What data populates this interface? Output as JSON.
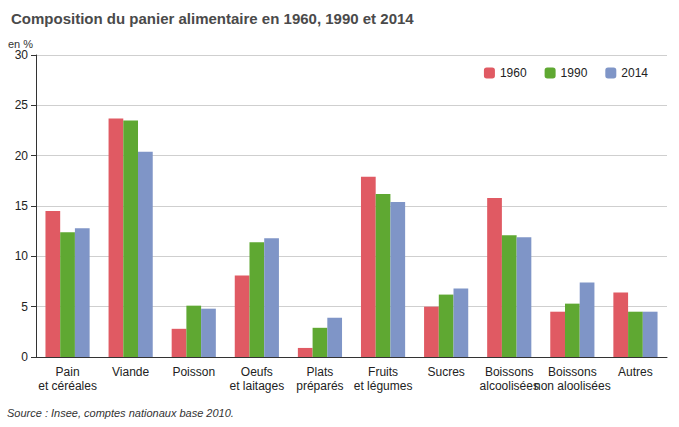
{
  "chart_data": {
    "type": "bar",
    "title": "Composition du panier alimentaire en 1960, 1990 et 2014",
    "ylabel": "en %",
    "note": "Source : Insee, comptes nationaux base 2010.",
    "categories": [
      "Pain\net céréales",
      "Viande",
      "Poisson",
      "Oeufs\net laitages",
      "Plats\npréparés",
      "Fruits\net légumes",
      "Sucres",
      "Boissons\nalcoolisées",
      "Boissons\nnon aloolisées",
      "Autres"
    ],
    "series": [
      {
        "name": "1960",
        "color": "#e05a63",
        "values": [
          14.5,
          23.7,
          2.8,
          8.1,
          0.9,
          17.9,
          5.0,
          15.8,
          4.5,
          6.4
        ]
      },
      {
        "name": "1990",
        "color": "#5fa832",
        "values": [
          12.4,
          23.5,
          5.1,
          11.4,
          2.9,
          16.2,
          6.2,
          12.1,
          5.3,
          4.5
        ]
      },
      {
        "name": "2014",
        "color": "#7f95c7",
        "values": [
          12.8,
          20.4,
          4.8,
          11.8,
          3.9,
          15.4,
          6.8,
          11.9,
          7.4,
          4.5
        ]
      }
    ],
    "ylim": [
      0,
      30
    ],
    "yticks": [
      0,
      5,
      10,
      15,
      20,
      25,
      30
    ],
    "grid": true,
    "legend": "top-right",
    "data_labels": false
  }
}
